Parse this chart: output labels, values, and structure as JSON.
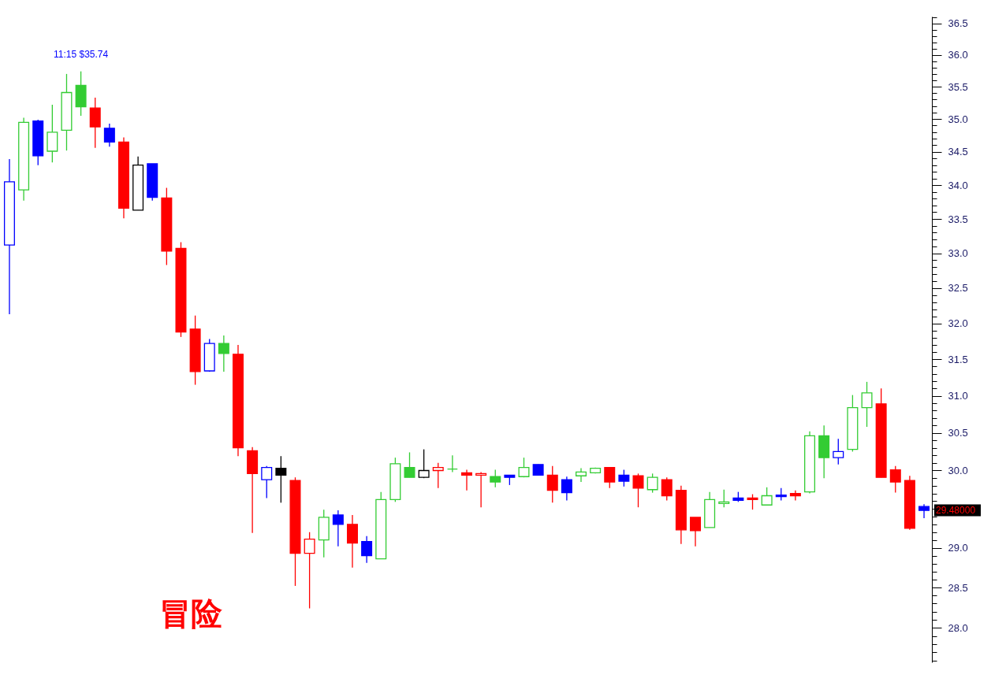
{
  "chart_data": {
    "type": "candlestick",
    "log": true,
    "tick_labels": "y",
    "grid": false,
    "categories": [
      null,
      null,
      null,
      null,
      null,
      null,
      null,
      null,
      null,
      null,
      null,
      null,
      null,
      null,
      null,
      null,
      null,
      null,
      null,
      null,
      null,
      null,
      null,
      null,
      null,
      null,
      null,
      null,
      null,
      null,
      null,
      null,
      null,
      null,
      null,
      null,
      null,
      null,
      null,
      null,
      null,
      null,
      null,
      null,
      null,
      null,
      null,
      null,
      null,
      null,
      null,
      null,
      null,
      null,
      null,
      null,
      null,
      null,
      null,
      null,
      null,
      null,
      null,
      null,
      null
    ],
    "ohlc": [
      [
        33.12,
        34.39,
        32.13,
        34.05
      ],
      [
        33.93,
        35.02,
        33.77,
        34.95
      ],
      [
        34.97,
        34.99,
        34.3,
        34.44
      ],
      [
        34.51,
        35.22,
        34.34,
        34.8
      ],
      [
        34.83,
        35.7,
        34.52,
        35.41
      ],
      [
        35.52,
        35.74,
        35.05,
        35.19
      ],
      [
        35.17,
        35.33,
        34.56,
        34.88
      ],
      [
        34.86,
        34.93,
        34.58,
        34.65
      ],
      [
        34.65,
        34.72,
        33.51,
        33.66
      ],
      [
        33.63,
        34.43,
        33.63,
        34.3
      ],
      [
        34.32,
        34.32,
        33.77,
        33.82
      ],
      [
        33.81,
        33.96,
        32.83,
        33.03
      ],
      [
        33.07,
        33.16,
        31.81,
        31.88
      ],
      [
        31.92,
        32.11,
        31.15,
        31.33
      ],
      [
        31.34,
        31.78,
        31.33,
        31.72
      ],
      [
        31.72,
        31.83,
        31.33,
        31.58
      ],
      [
        31.57,
        31.7,
        30.19,
        30.3
      ],
      [
        30.26,
        30.31,
        29.19,
        29.96
      ],
      [
        29.88,
        30.06,
        29.64,
        30.04
      ],
      [
        30.03,
        30.19,
        29.58,
        29.94
      ],
      [
        29.87,
        29.91,
        28.52,
        28.93
      ],
      [
        28.93,
        29.2,
        28.24,
        29.11
      ],
      [
        29.1,
        29.49,
        28.88,
        29.39
      ],
      [
        29.42,
        29.48,
        29.02,
        29.3
      ],
      [
        29.3,
        29.42,
        28.75,
        29.06
      ],
      [
        29.08,
        29.15,
        28.81,
        28.9
      ],
      [
        28.86,
        29.72,
        28.86,
        29.62
      ],
      [
        29.62,
        30.17,
        29.59,
        30.09
      ],
      [
        30.04,
        30.24,
        29.91,
        29.91
      ],
      [
        29.91,
        30.28,
        29.9,
        30
      ],
      [
        30,
        30.1,
        29.77,
        30.04
      ],
      [
        30.02,
        30.2,
        29.98,
        30.02
      ],
      [
        29.97,
        30.01,
        29.74,
        29.94
      ],
      [
        29.94,
        29.98,
        29.52,
        29.96
      ],
      [
        29.92,
        30.01,
        29.78,
        29.85
      ],
      [
        29.94,
        29.94,
        29.81,
        29.91
      ],
      [
        29.92,
        30.17,
        29.91,
        30.04
      ],
      [
        30.08,
        30.08,
        29.94,
        29.94
      ],
      [
        29.94,
        30.06,
        29.58,
        29.74
      ],
      [
        29.88,
        29.92,
        29.61,
        29.71
      ],
      [
        29.93,
        30.03,
        29.85,
        29.98
      ],
      [
        29.97,
        30.04,
        29.96,
        30.03
      ],
      [
        30.04,
        30.04,
        29.77,
        29.85
      ],
      [
        29.94,
        30.01,
        29.79,
        29.86
      ],
      [
        29.93,
        29.96,
        29.52,
        29.77
      ],
      [
        29.75,
        29.96,
        29.71,
        29.91
      ],
      [
        29.88,
        29.91,
        29.61,
        29.67
      ],
      [
        29.74,
        29.8,
        29.05,
        29.23
      ],
      [
        29.39,
        29.39,
        29.02,
        29.22
      ],
      [
        29.26,
        29.72,
        29.26,
        29.62
      ],
      [
        29.57,
        29.75,
        29.52,
        29.59
      ],
      [
        29.64,
        29.72,
        29.59,
        29.61
      ],
      [
        29.64,
        29.69,
        29.49,
        29.62
      ],
      [
        29.55,
        29.78,
        29.55,
        29.67
      ],
      [
        29.68,
        29.77,
        29.61,
        29.66
      ],
      [
        29.7,
        29.74,
        29.61,
        29.67
      ],
      [
        29.72,
        30.52,
        29.7,
        30.46
      ],
      [
        30.46,
        30.6,
        29.9,
        30.17
      ],
      [
        30.17,
        30.42,
        30.08,
        30.25
      ],
      [
        30.28,
        31.01,
        30.25,
        30.84
      ],
      [
        30.84,
        31.19,
        30.58,
        31.04
      ],
      [
        30.89,
        31.1,
        29.91,
        29.91
      ],
      [
        30.01,
        30.06,
        29.71,
        29.85
      ],
      [
        29.87,
        29.93,
        29.23,
        29.25
      ],
      [
        29.53,
        29.56,
        29.38,
        29.48
      ]
    ],
    "colors": [
      "#0000ff",
      "#33cc33",
      "#0000ff",
      "#33cc33",
      "#33cc33",
      "#33cc33",
      "#ff0000",
      "#0000ff",
      "#ff0000",
      "#000000",
      "#0000ff",
      "#ff0000",
      "#ff0000",
      "#ff0000",
      "#0000ff",
      "#33cc33",
      "#ff0000",
      "#ff0000",
      "#0000ff",
      "#000000",
      "#ff0000",
      "#ff0000",
      "#33cc33",
      "#0000ff",
      "#ff0000",
      "#0000ff",
      "#33cc33",
      "#33cc33",
      "#33cc33",
      "#000000",
      "#ff0000",
      "#33cc33",
      "#ff0000",
      "#ff0000",
      "#33cc33",
      "#0000ff",
      "#33cc33",
      "#0000ff",
      "#ff0000",
      "#0000ff",
      "#33cc33",
      "#33cc33",
      "#ff0000",
      "#0000ff",
      "#ff0000",
      "#33cc33",
      "#ff0000",
      "#ff0000",
      "#ff0000",
      "#33cc33",
      "#33cc33",
      "#0000ff",
      "#ff0000",
      "#33cc33",
      "#0000ff",
      "#ff0000",
      "#33cc33",
      "#33cc33",
      "#0000ff",
      "#33cc33",
      "#33cc33",
      "#ff0000",
      "#ff0000",
      "#ff0000",
      "#0000ff"
    ],
    "ylim": [
      27.58,
      36.61
    ],
    "yticks": [
      {
        "value": 27.6,
        "label": null
      },
      {
        "value": 27.7,
        "label": null
      },
      {
        "value": 27.8,
        "label": null
      },
      {
        "value": 27.9,
        "label": null
      },
      {
        "value": 28,
        "label": "28.0"
      },
      {
        "value": 28.1,
        "label": null
      },
      {
        "value": 28.2,
        "label": null
      },
      {
        "value": 28.3,
        "label": null
      },
      {
        "value": 28.4,
        "label": null
      },
      28.5,
      {
        "value": 28.6,
        "label": null
      },
      {
        "value": 28.7,
        "label": null
      },
      {
        "value": 28.8,
        "label": null
      },
      {
        "value": 28.9,
        "label": null
      },
      {
        "value": 29,
        "label": "29.0"
      },
      {
        "value": 29.1,
        "label": null
      },
      {
        "value": 29.2,
        "label": null
      },
      {
        "value": 29.3,
        "label": null
      },
      {
        "value": 29.4,
        "label": null
      },
      {
        "value": 29.5,
        "label": null
      },
      {
        "value": 29.6,
        "label": null
      },
      {
        "value": 29.7,
        "label": null
      },
      {
        "value": 29.8,
        "label": null
      },
      {
        "value": 29.9,
        "label": null
      },
      {
        "value": 30,
        "label": "30.0"
      },
      {
        "value": 30.1,
        "label": null
      },
      {
        "value": 30.2,
        "label": null
      },
      {
        "value": 30.3,
        "label": null
      },
      {
        "value": 30.4,
        "label": null
      },
      30.5,
      {
        "value": 30.6,
        "label": null
      },
      {
        "value": 30.7,
        "label": null
      },
      {
        "value": 30.8,
        "label": null
      },
      {
        "value": 30.9,
        "label": null
      },
      {
        "value": 31,
        "label": "31.0"
      },
      {
        "value": 31.1,
        "label": null
      },
      {
        "value": 31.2,
        "label": null
      },
      {
        "value": 31.3,
        "label": null
      },
      {
        "value": 31.4,
        "label": null
      },
      31.5,
      {
        "value": 31.6,
        "label": null
      },
      {
        "value": 31.7,
        "label": null
      },
      {
        "value": 31.8,
        "label": null
      },
      {
        "value": 31.9,
        "label": null
      },
      {
        "value": 32,
        "label": "32.0"
      },
      {
        "value": 32.1,
        "label": null
      },
      {
        "value": 32.2,
        "label": null
      },
      {
        "value": 32.3,
        "label": null
      },
      {
        "value": 32.4,
        "label": null
      },
      32.5,
      {
        "value": 32.6,
        "label": null
      },
      {
        "value": 32.7,
        "label": null
      },
      {
        "value": 32.8,
        "label": null
      },
      {
        "value": 32.9,
        "label": null
      },
      {
        "value": 33,
        "label": "33.0"
      },
      {
        "value": 33.1,
        "label": null
      },
      {
        "value": 33.2,
        "label": null
      },
      {
        "value": 33.3,
        "label": null
      },
      {
        "value": 33.4,
        "label": null
      },
      33.5,
      {
        "value": 33.6,
        "label": null
      },
      {
        "value": 33.7,
        "label": null
      },
      {
        "value": 33.8,
        "label": null
      },
      {
        "value": 33.9,
        "label": null
      },
      {
        "value": 34,
        "label": "34.0"
      },
      {
        "value": 34.1,
        "label": null
      },
      {
        "value": 34.2,
        "label": null
      },
      {
        "value": 34.3,
        "label": null
      },
      {
        "value": 34.4,
        "label": null
      },
      34.5,
      {
        "value": 34.6,
        "label": null
      },
      {
        "value": 34.7,
        "label": null
      },
      {
        "value": 34.8,
        "label": null
      },
      {
        "value": 34.9,
        "label": null
      },
      {
        "value": 35,
        "label": "35.0"
      },
      {
        "value": 35.1,
        "label": null
      },
      {
        "value": 35.2,
        "label": null
      },
      {
        "value": 35.3,
        "label": null
      },
      {
        "value": 35.4,
        "label": null
      },
      35.5,
      {
        "value": 35.6,
        "label": null
      },
      {
        "value": 35.7,
        "label": null
      },
      {
        "value": 35.8,
        "label": null
      },
      {
        "value": 35.9,
        "label": null
      },
      {
        "value": 36,
        "label": "36.0"
      },
      {
        "value": 36.1,
        "label": null
      },
      {
        "value": 36.2,
        "label": null
      },
      {
        "value": 36.3,
        "label": null
      },
      {
        "value": 36.4,
        "label": null
      },
      36.5,
      {
        "value": 36.6,
        "label": null
      }
    ],
    "annotations": [
      {
        "text": "11:15 $35.74",
        "y": 35.74
      },
      "29.48000",
      "冒险"
    ]
  }
}
